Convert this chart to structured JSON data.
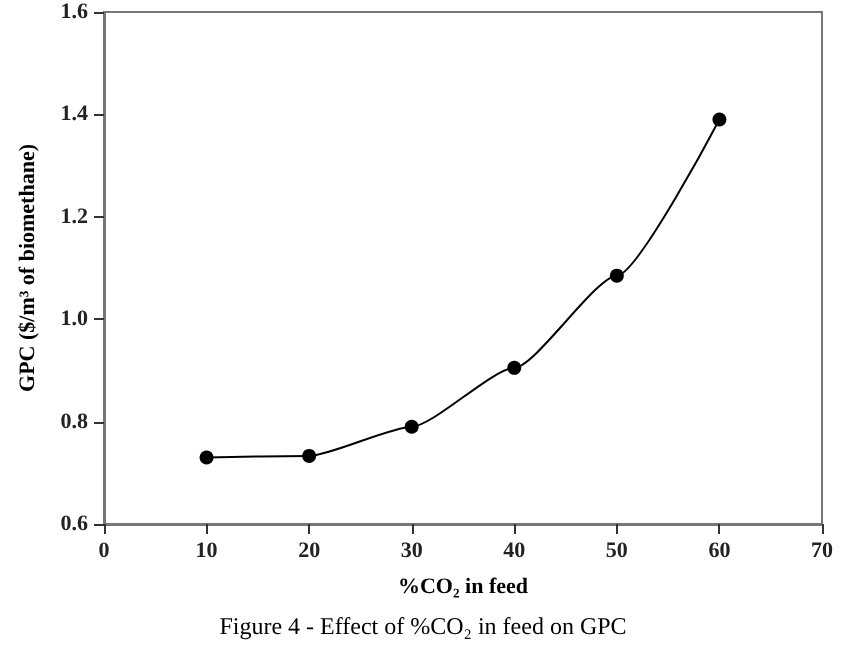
{
  "chart_data": {
    "type": "line",
    "title": "Figure 4 - Effect of %CO₂ in feed on GPC",
    "xlabel": "%CO₂ in feed",
    "ylabel": "GPC ($/m³ of biomethane)",
    "x": [
      10,
      20,
      30,
      40,
      50,
      60
    ],
    "series": [
      {
        "color": "#000000",
        "values": [
          0.73,
          0.733,
          0.79,
          0.905,
          1.085,
          1.39
        ]
      }
    ],
    "xlim": [
      0,
      70
    ],
    "xticks": [
      0,
      10,
      20,
      30,
      40,
      50,
      60,
      70
    ],
    "ylim": [
      0.6,
      1.6
    ],
    "yticks": [
      0.6,
      0.8,
      {
        "value": 1,
        "label": "1.0"
      },
      1.2,
      1.4,
      1.6
    ],
    "grid": false,
    "marker": "circle",
    "line_style": "solid"
  }
}
